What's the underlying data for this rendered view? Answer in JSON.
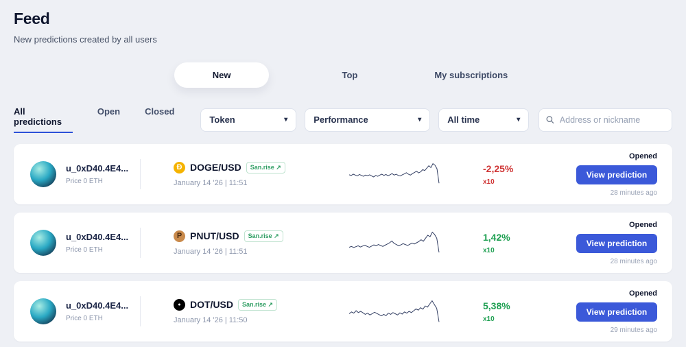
{
  "colors": {
    "accent_blue": "#3b59d9",
    "active_underline": "#2c50d8",
    "positive": "#1fa052",
    "negative": "#cf3434",
    "spark": "#333f63"
  },
  "header": {
    "title": "Feed",
    "subtitle": "New predictions created by all users"
  },
  "view_tabs": [
    {
      "label": "New",
      "active": true
    },
    {
      "label": "Top",
      "active": false
    },
    {
      "label": "My subscriptions",
      "active": false
    }
  ],
  "filters": {
    "status_tabs": [
      {
        "label": "All predictions",
        "active": true
      },
      {
        "label": "Open",
        "active": false
      },
      {
        "label": "Closed",
        "active": false
      }
    ],
    "token_dropdown": "Token",
    "performance_dropdown": "Performance",
    "time_dropdown": "All time",
    "search_placeholder": "Address or nickname"
  },
  "cards": [
    {
      "user": "u_0xD40.4E4...",
      "price": "Price 0 ETH",
      "icon": {
        "name": "doge-icon",
        "glyph": "Ð",
        "bg": "#f5b300",
        "fg": "#ffffff"
      },
      "pair": "DOGE/USD",
      "badge": "San.rise ↗",
      "date": "January 14 '26 | 11:51",
      "change": "-2,25%",
      "change_color": "#cf3434",
      "leverage": "x10",
      "status": "Opened",
      "button": "View prediction",
      "time_ago": "28 minutes ago",
      "spark": [
        48,
        46,
        50,
        47,
        44,
        49,
        46,
        43,
        47,
        45,
        48,
        44,
        41,
        46,
        43,
        47,
        50,
        46,
        49,
        45,
        48,
        52,
        47,
        50,
        46,
        44,
        48,
        51,
        55,
        50,
        47,
        52,
        56,
        60,
        54,
        58,
        65,
        62,
        70,
        78,
        72,
        85,
        80,
        68,
        20
      ]
    },
    {
      "user": "u_0xD40.4E4...",
      "price": "Price 0 ETH",
      "icon": {
        "name": "pnut-icon",
        "glyph": "P",
        "bg": "#c98a4b",
        "fg": "#4a2c12"
      },
      "pair": "PNUT/USD",
      "badge": "San.rise ↗",
      "date": "January 14 '26 | 11:51",
      "change": "1,42%",
      "change_color": "#1fa052",
      "leverage": "x10",
      "status": "Opened",
      "button": "View prediction",
      "time_ago": "28 minutes ago",
      "spark": [
        35,
        38,
        34,
        37,
        40,
        36,
        39,
        42,
        38,
        35,
        39,
        43,
        40,
        44,
        41,
        38,
        42,
        46,
        50,
        56,
        48,
        44,
        40,
        43,
        47,
        44,
        41,
        45,
        49,
        46,
        50,
        54,
        60,
        55,
        65,
        75,
        70,
        85,
        78,
        65,
        18
      ]
    },
    {
      "user": "u_0xD40.4E4...",
      "price": "Price 0 ETH",
      "icon": {
        "name": "dot-icon",
        "glyph": "●",
        "bg": "#000000",
        "fg": "#ffffff"
      },
      "pair": "DOT/USD",
      "badge": "San.rise ↗",
      "date": "January 14 '26 | 11:50",
      "change": "5,38%",
      "change_color": "#1fa052",
      "leverage": "x10",
      "status": "Opened",
      "button": "View prediction",
      "time_ago": "29 minutes ago",
      "spark": [
        42,
        48,
        44,
        52,
        46,
        50,
        45,
        40,
        44,
        38,
        42,
        47,
        43,
        39,
        35,
        40,
        36,
        44,
        40,
        46,
        42,
        38,
        45,
        41,
        48,
        44,
        50,
        46,
        52,
        58,
        54,
        62,
        57,
        68,
        64,
        75,
        85,
        72,
        60,
        15
      ]
    }
  ]
}
